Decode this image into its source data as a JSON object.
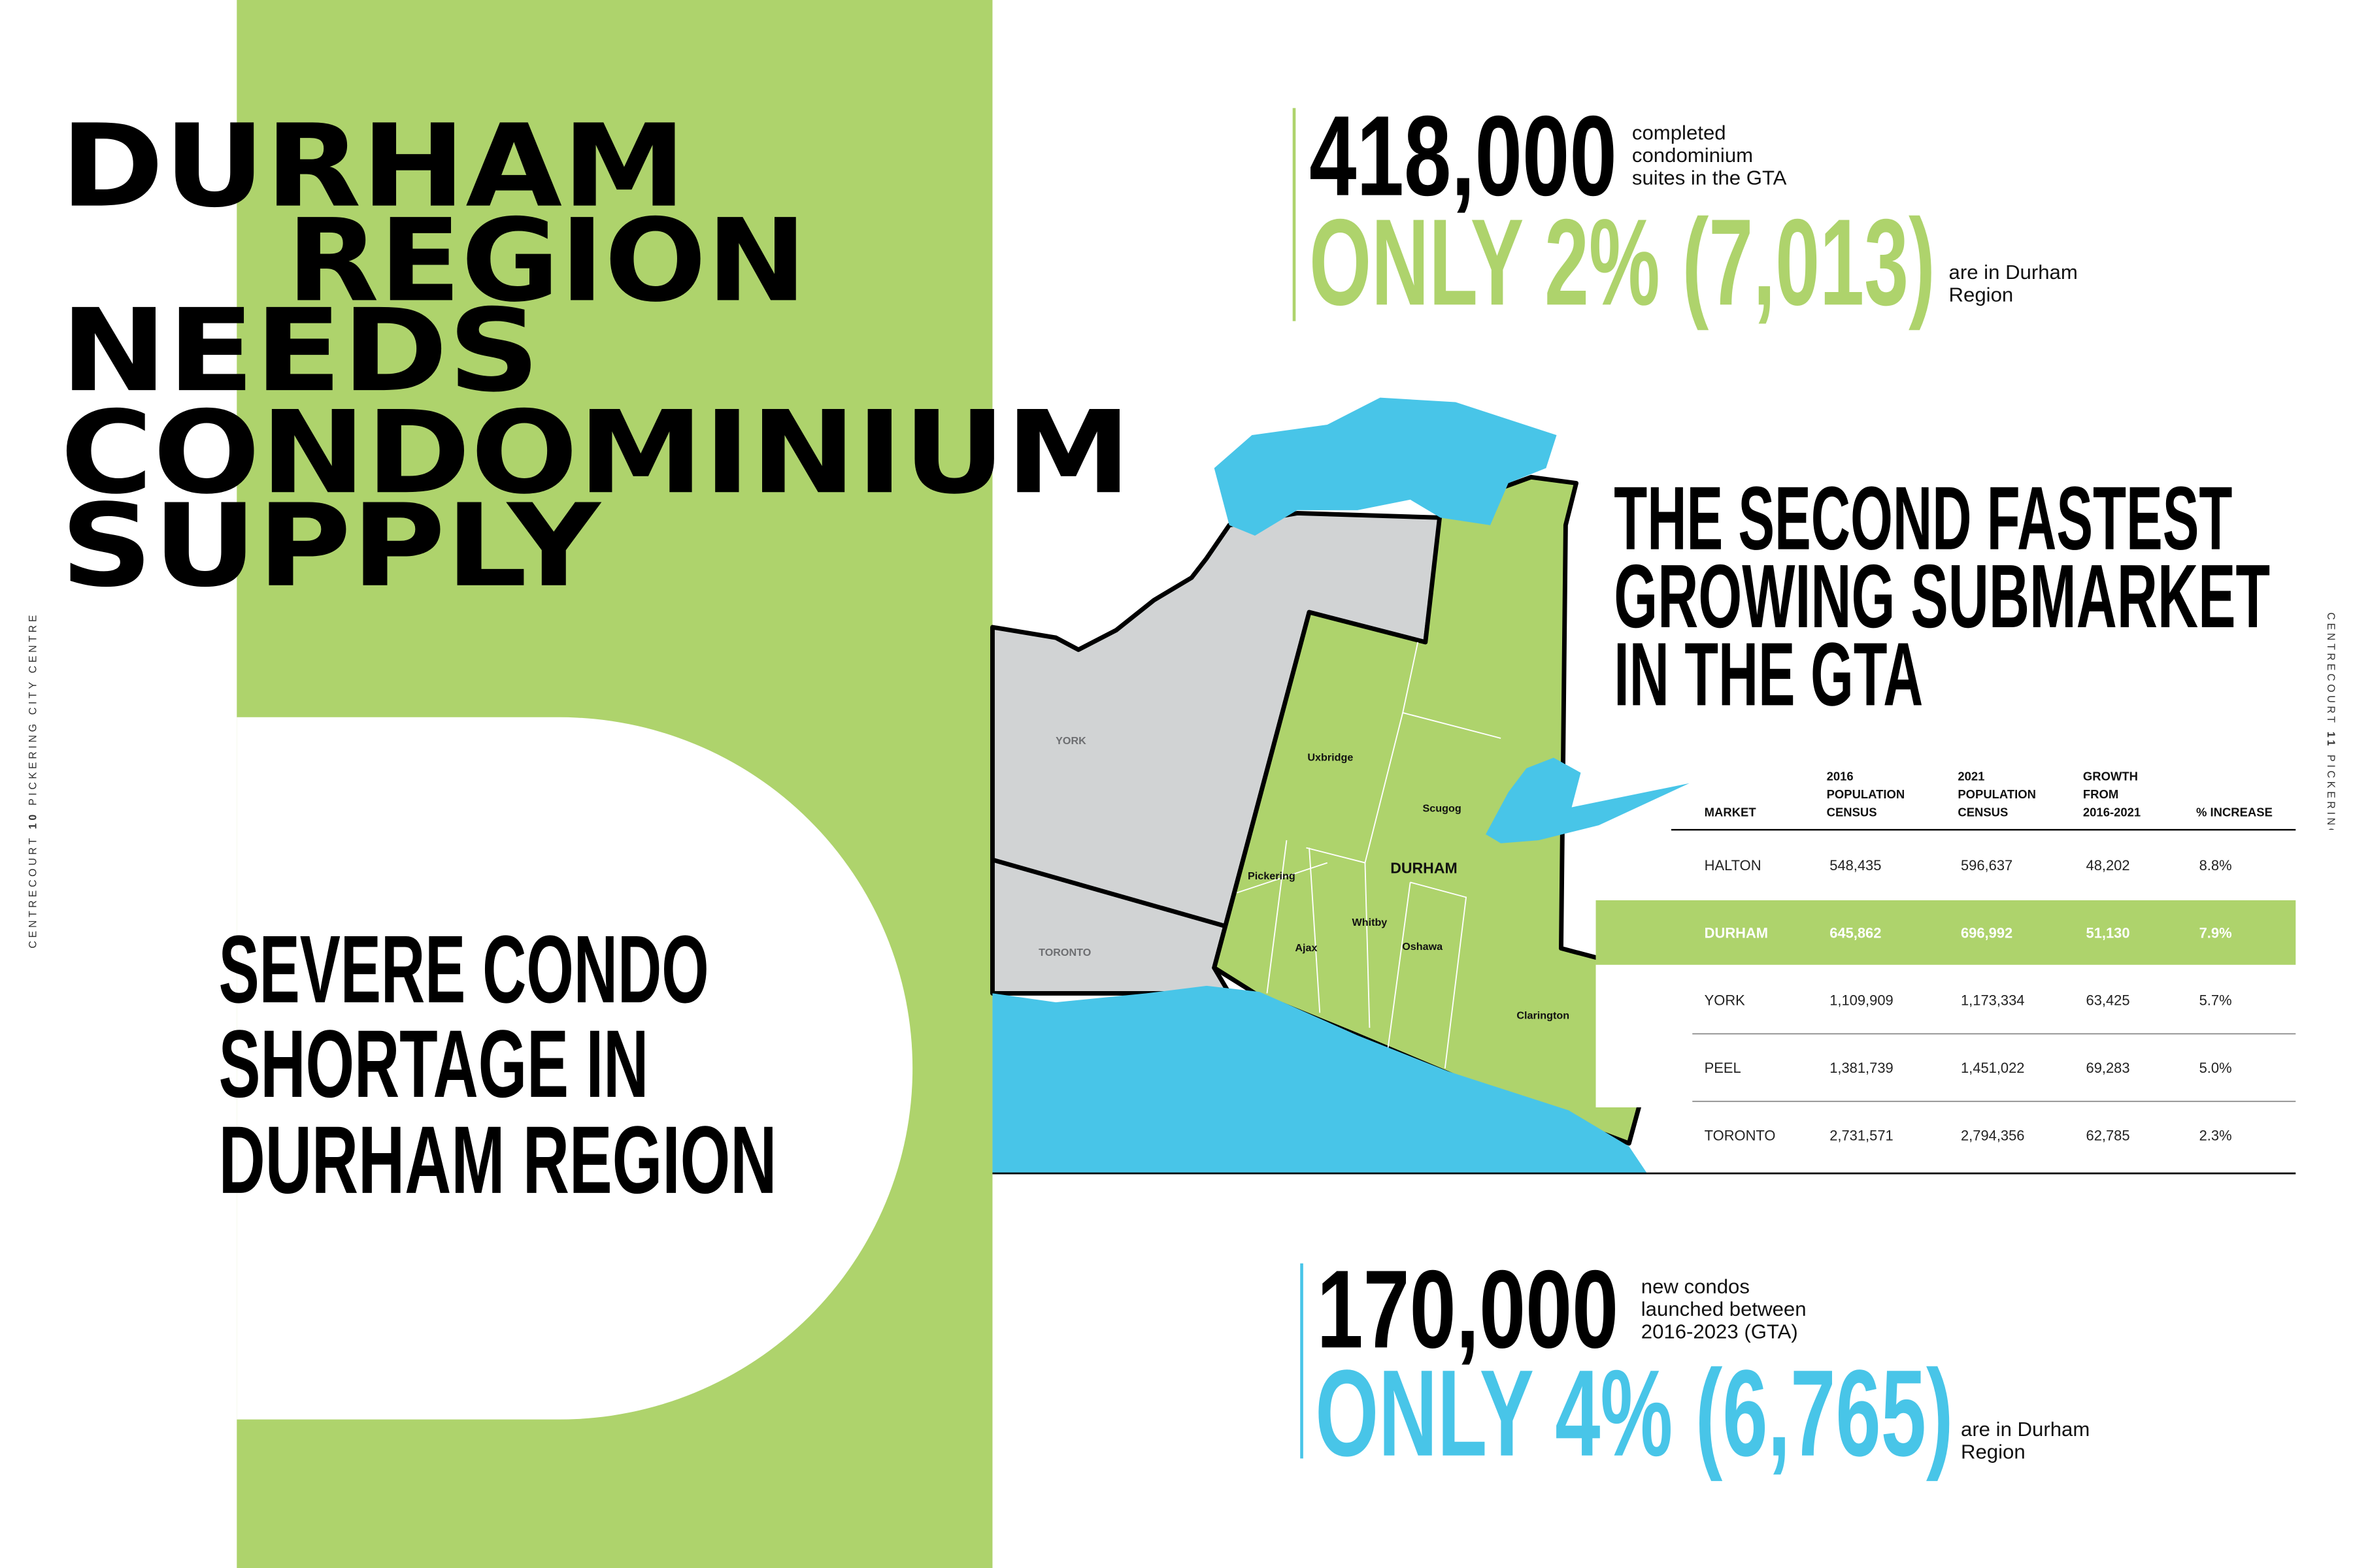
{
  "title_lines": [
    "DURHAM",
    "REGION",
    "NEEDS",
    "CONDOMINIUM",
    "SUPPLY"
  ],
  "side_left": {
    "brand": "CENTRECOURT",
    "page": "10",
    "project": "PICKERING CITY CENTRE"
  },
  "side_right": {
    "brand": "CENTRECOURT",
    "page": "11",
    "project": "PICKERING CITY CENTRE"
  },
  "callout": [
    "SEVERE CONDO",
    "SHORTAGE IN",
    "DURHAM REGION"
  ],
  "stats": [
    {
      "number": "418,000",
      "note": [
        "completed",
        "condominium",
        "suites in the GTA"
      ],
      "highlight": "ONLY 2% (7,013)",
      "highlight_note": [
        "are in Durham",
        "Region"
      ]
    },
    {
      "number": "170,000",
      "note": [
        "new condos",
        "launched between",
        "2016-2023 (GTA)"
      ],
      "highlight": "ONLY 4% (6,765)",
      "highlight_note": [
        "are in Durham",
        "Region"
      ]
    }
  ],
  "heading": [
    "THE SECOND FASTEST",
    "GROWING SUBMARKET",
    "IN THE GTA"
  ],
  "map": {
    "labels": [
      "YORK",
      "TORONTO",
      "Uxbridge",
      "Scugog",
      "DURHAM",
      "Pickering",
      "Ajax",
      "Whitby",
      "Oshawa",
      "Clarington"
    ]
  },
  "table": {
    "header": [
      [
        "MARKET"
      ],
      [
        "2016",
        "POPULATION",
        "CENSUS"
      ],
      [
        "2021",
        "POPULATION",
        "CENSUS"
      ],
      [
        "GROWTH",
        "FROM",
        "2016-2021"
      ],
      [
        "% INCREASE"
      ]
    ],
    "rows": [
      [
        "HALTON",
        "548,435",
        "596,637",
        "48,202",
        "8.8%"
      ],
      [
        "DURHAM",
        "645,862",
        "696,992",
        "51,130",
        "7.9%"
      ],
      [
        "YORK",
        "1,109,909",
        "1,173,334",
        "63,425",
        "5.7%"
      ],
      [
        "PEEL",
        "1,381,739",
        "1,451,022",
        "69,283",
        "5.0%"
      ],
      [
        "TORONTO",
        "2,731,571",
        "2,794,356",
        "62,785",
        "2.3%"
      ]
    ]
  }
}
